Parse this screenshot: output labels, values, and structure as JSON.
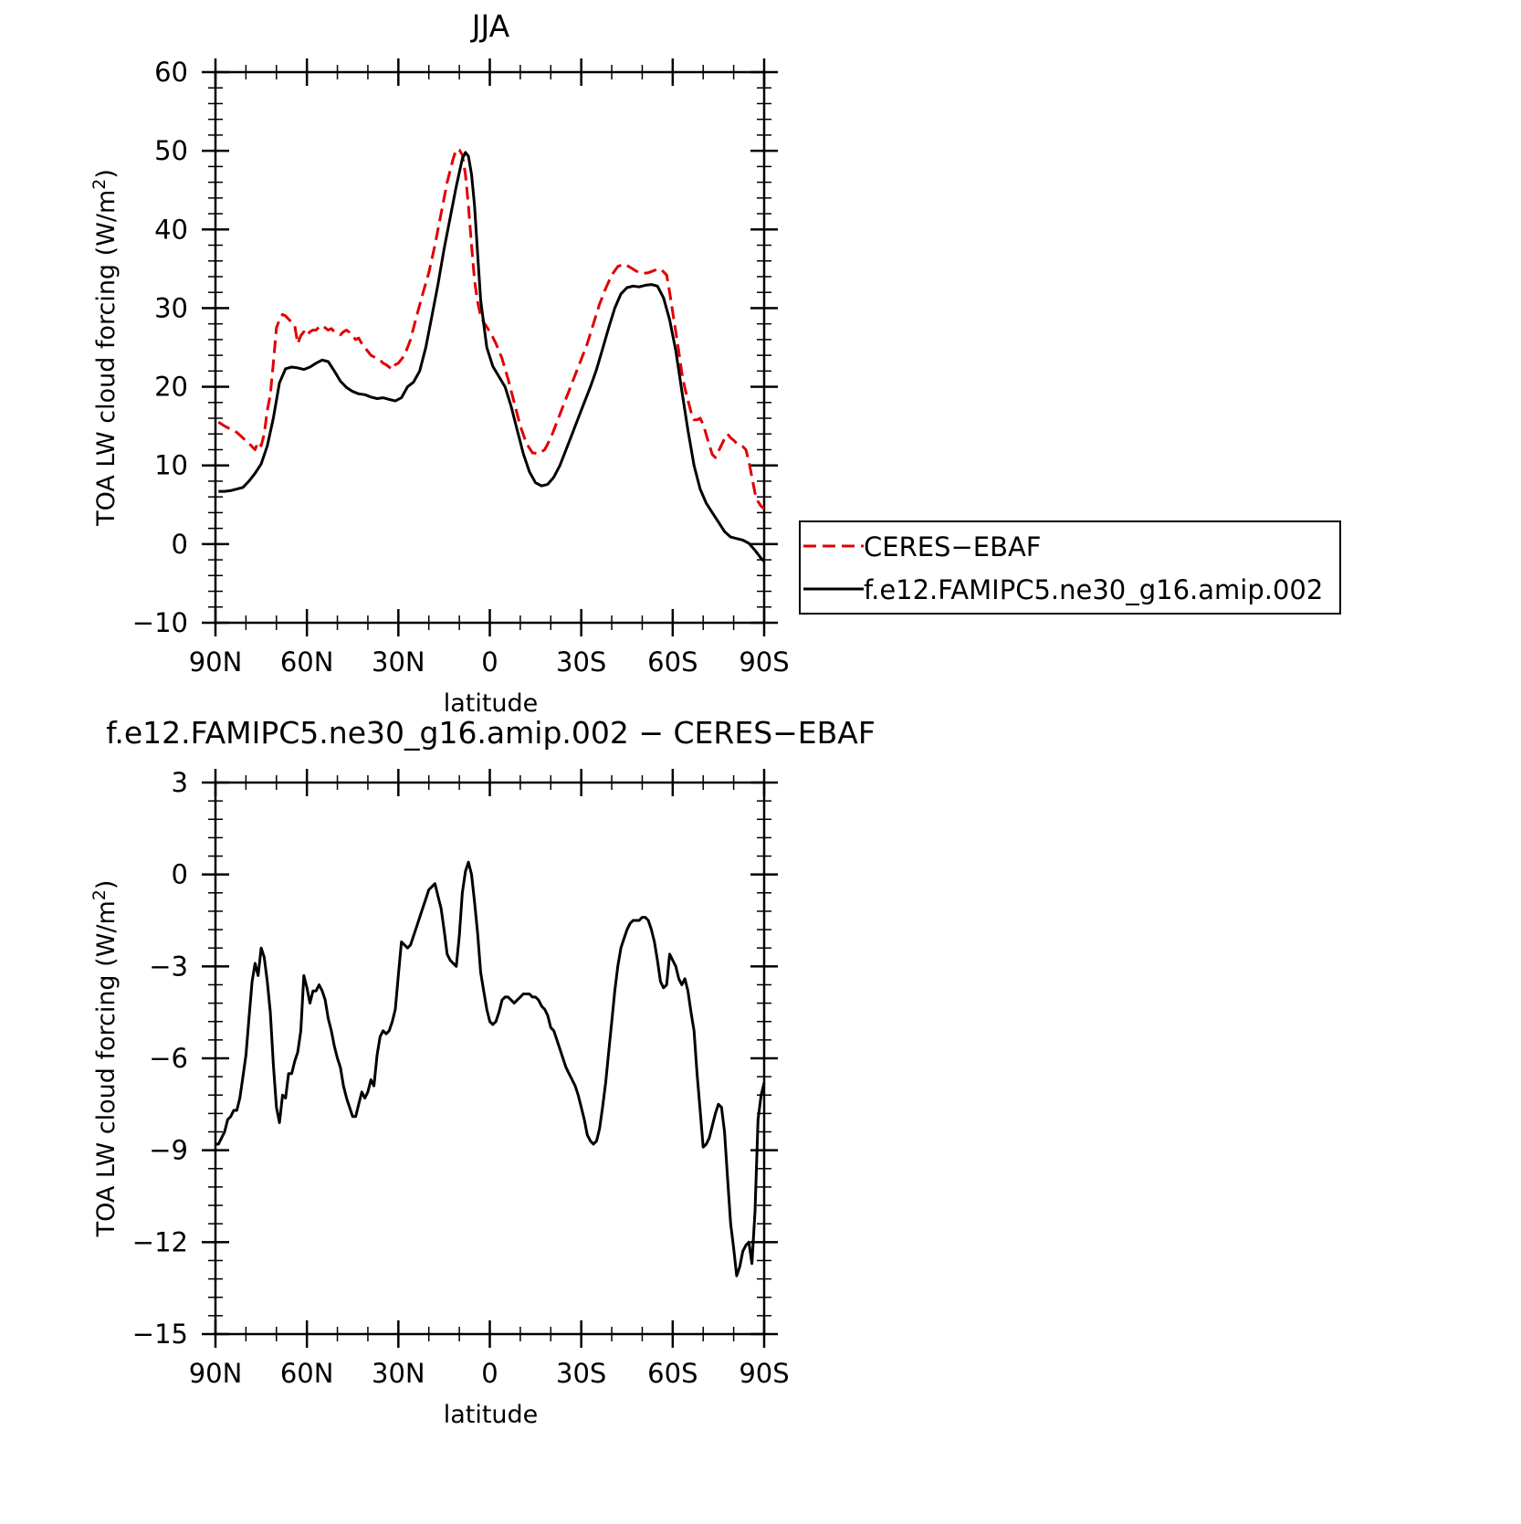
{
  "chart_data": [
    {
      "type": "line",
      "title": "JJA",
      "xlabel": "latitude",
      "ylabel": "TOA LW cloud forcing (W/m",
      "ylabel_sup": "2",
      "ylabel_close": ")",
      "xlim": [
        90,
        -90
      ],
      "ylim": [
        -10,
        60
      ],
      "xticks": [
        90,
        60,
        30,
        0,
        -30,
        -60,
        -90
      ],
      "xtick_labels": [
        "90N",
        "60N",
        "30N",
        "0",
        "30S",
        "60S",
        "90S"
      ],
      "yticks": [
        -10,
        0,
        10,
        20,
        30,
        40,
        50,
        60
      ],
      "ytick_labels": [
        "−10",
        "0",
        "10",
        "20",
        "30",
        "40",
        "50",
        "60"
      ],
      "legend_position": "right",
      "series": [
        {
          "name": "CERES−EBAF",
          "color": "#e00000",
          "dash": "dashed",
          "x": [
            89,
            87,
            85,
            83,
            81,
            79,
            77,
            76,
            75,
            74,
            73,
            72,
            71,
            70,
            69,
            68,
            67,
            66,
            65,
            64,
            63,
            62,
            61,
            60,
            59,
            58,
            57,
            56,
            55,
            54,
            53,
            52,
            51,
            50,
            49,
            48,
            47,
            46,
            45,
            44,
            43,
            42,
            41,
            40,
            39,
            38,
            37,
            36,
            35,
            34,
            33,
            32,
            31,
            30,
            29,
            28,
            27,
            26,
            25,
            24,
            22,
            20,
            18,
            16,
            14,
            12,
            11,
            10,
            9,
            8,
            7,
            6,
            5,
            4,
            3,
            2,
            1,
            0,
            -1,
            -2,
            -4,
            -6,
            -8,
            -10,
            -12,
            -14,
            -16,
            -18,
            -20,
            -22,
            -24,
            -26,
            -28,
            -30,
            -32,
            -34,
            -36,
            -38,
            -40,
            -42,
            -44,
            -46,
            -48,
            -50,
            -52,
            -54,
            -56,
            -58,
            -59,
            -60,
            -61,
            -62,
            -63,
            -64,
            -65,
            -66,
            -67,
            -68,
            -69,
            -70,
            -71,
            -72,
            -73,
            -74,
            -75,
            -76,
            -77,
            -78,
            -79,
            -80,
            -81,
            -82,
            -83,
            -84,
            -85,
            -86,
            -87,
            -88,
            -89,
            -90
          ],
          "y": [
            15.5,
            15.0,
            14.6,
            14.2,
            13.5,
            12.8,
            12.0,
            13.0,
            12.5,
            14.0,
            17.0,
            19.0,
            23.0,
            27.5,
            28.5,
            29.2,
            29.0,
            28.6,
            28.2,
            27.8,
            25.5,
            26.5,
            27.0,
            26.5,
            27.0,
            27.2,
            27.2,
            27.6,
            27.8,
            27.5,
            27.2,
            27.4,
            27.0,
            26.8,
            26.6,
            27.0,
            27.2,
            26.9,
            26.4,
            26.0,
            26.2,
            25.5,
            25.0,
            24.5,
            24.0,
            23.8,
            23.6,
            23.4,
            23.0,
            22.8,
            22.5,
            22.2,
            22.8,
            23.0,
            23.5,
            24.0,
            25.0,
            26.0,
            27.5,
            29.0,
            31.8,
            34.5,
            38.0,
            42.0,
            46.0,
            49.0,
            50.2,
            50.1,
            49.5,
            47.0,
            43.0,
            38.0,
            33.5,
            30.8,
            29.0,
            28.2,
            27.6,
            27.0,
            26.3,
            25.5,
            23.6,
            21.0,
            18.0,
            15.0,
            12.8,
            11.6,
            11.5,
            12.0,
            13.5,
            15.5,
            17.5,
            19.5,
            21.5,
            23.5,
            25.5,
            28.0,
            30.5,
            32.5,
            34.2,
            35.3,
            35.6,
            35.2,
            34.7,
            34.4,
            34.5,
            34.8,
            35.0,
            34.2,
            32.0,
            29.5,
            27.0,
            24.5,
            21.8,
            19.8,
            18.3,
            16.8,
            15.8,
            15.8,
            16.0,
            15.2,
            13.9,
            12.6,
            11.4,
            11.0,
            11.8,
            12.6,
            13.4,
            14.0,
            13.5,
            13.2,
            12.8,
            12.6,
            12.4,
            12.0,
            10.5,
            8.5,
            6.5,
            5.4,
            4.8,
            4.5
          ]
        },
        {
          "name": "f.e12.FAMIPC5.ne30_g16.amip.002",
          "color": "#000000",
          "dash": "solid",
          "x": [
            89,
            87,
            85,
            83,
            81,
            79,
            77,
            75,
            73,
            71,
            69,
            67,
            65,
            63,
            61,
            59,
            57,
            55,
            53,
            51,
            49,
            47,
            45,
            43,
            41,
            39,
            37,
            35,
            33,
            31,
            29,
            27,
            25,
            23,
            21,
            19,
            17,
            15,
            13,
            11,
            9,
            8,
            7,
            6,
            5,
            4,
            3,
            1,
            -1,
            -3,
            -5,
            -7,
            -9,
            -11,
            -13,
            -15,
            -17,
            -19,
            -21,
            -23,
            -25,
            -27,
            -29,
            -31,
            -33,
            -35,
            -37,
            -39,
            -41,
            -43,
            -45,
            -47,
            -49,
            -51,
            -53,
            -55,
            -57,
            -59,
            -61,
            -63,
            -65,
            -67,
            -69,
            -71,
            -73,
            -75,
            -77,
            -79,
            -81,
            -83,
            -85,
            -87,
            -89,
            -90
          ],
          "y": [
            6.7,
            6.7,
            6.8,
            7.0,
            7.2,
            8.0,
            9.0,
            10.2,
            12.5,
            16.0,
            20.5,
            22.3,
            22.5,
            22.4,
            22.2,
            22.5,
            23.0,
            23.4,
            23.2,
            22.0,
            20.7,
            19.9,
            19.4,
            19.1,
            19.0,
            18.7,
            18.5,
            18.6,
            18.4,
            18.2,
            18.6,
            20.0,
            20.6,
            22.0,
            25.0,
            29.0,
            33.0,
            37.5,
            41.5,
            45.5,
            49.0,
            49.8,
            49.3,
            47.0,
            43.0,
            37.0,
            31.0,
            25.0,
            22.6,
            21.3,
            20.0,
            17.5,
            14.5,
            11.5,
            9.2,
            7.8,
            7.4,
            7.6,
            8.5,
            10.0,
            12.0,
            14.0,
            16.0,
            18.0,
            20.0,
            22.2,
            24.8,
            27.5,
            30.0,
            31.8,
            32.6,
            32.8,
            32.7,
            32.9,
            33.0,
            32.8,
            31.3,
            28.5,
            24.6,
            19.5,
            14.5,
            10.0,
            7.0,
            5.2,
            4.0,
            2.8,
            1.6,
            0.9,
            0.7,
            0.5,
            0.1,
            -0.8,
            -1.8,
            -2.2
          ]
        }
      ]
    },
    {
      "type": "line",
      "title": "f.e12.FAMIPC5.ne30_g16.amip.002 − CERES−EBAF",
      "xlabel": "latitude",
      "ylabel": "TOA LW cloud forcing (W/m",
      "ylabel_sup": "2",
      "ylabel_close": ")",
      "xlim": [
        90,
        -90
      ],
      "ylim": [
        -15,
        3
      ],
      "xticks": [
        90,
        60,
        30,
        0,
        -30,
        -60,
        -90
      ],
      "xtick_labels": [
        "90N",
        "60N",
        "30N",
        "0",
        "30S",
        "60S",
        "90S"
      ],
      "yticks": [
        -15,
        -12,
        -9,
        -6,
        -3,
        0,
        3
      ],
      "ytick_labels": [
        "−15",
        "−12",
        "−9",
        "−6",
        "−3",
        "0",
        "3"
      ],
      "series": [
        {
          "name": "",
          "color": "#000000",
          "dash": "solid",
          "x": [
            90,
            89,
            88,
            87,
            86,
            85,
            84,
            83,
            82,
            81,
            80,
            79,
            78,
            77,
            76,
            75,
            74,
            73,
            72,
            71,
            70,
            69,
            68,
            67,
            66,
            65,
            64,
            63,
            62,
            61,
            60,
            59,
            58,
            57,
            56,
            55,
            54,
            53,
            52,
            51,
            50,
            49,
            48,
            47,
            46,
            45,
            44,
            43,
            42,
            41,
            40,
            39,
            38,
            37,
            36,
            35,
            34,
            33,
            32,
            31,
            30,
            29,
            28,
            27,
            26,
            25,
            24,
            23,
            22,
            21,
            20,
            19,
            18,
            17,
            16,
            15,
            14,
            13,
            12,
            11,
            10,
            9,
            8,
            7,
            6,
            5,
            4,
            3,
            2,
            1,
            0,
            -1,
            -2,
            -3,
            -4,
            -5,
            -6,
            -7,
            -8,
            -9,
            -10,
            -11,
            -12,
            -13,
            -14,
            -15,
            -16,
            -17,
            -18,
            -19,
            -20,
            -21,
            -22,
            -23,
            -24,
            -25,
            -26,
            -27,
            -28,
            -29,
            -30,
            -31,
            -32,
            -33,
            -34,
            -35,
            -36,
            -37,
            -38,
            -39,
            -40,
            -41,
            -42,
            -43,
            -44,
            -45,
            -46,
            -47,
            -48,
            -49,
            -50,
            -51,
            -52,
            -53,
            -54,
            -55,
            -56,
            -57,
            -58,
            -59,
            -60,
            -61,
            -62,
            -63,
            -64,
            -65,
            -66,
            -67,
            -68,
            -69,
            -70,
            -71,
            -72,
            -73,
            -74,
            -75,
            -76,
            -77,
            -78,
            -79,
            -80,
            -81,
            -82,
            -83,
            -84,
            -85,
            -86,
            -87,
            -88,
            -89,
            -90
          ],
          "y": [
            -8.8,
            -8.8,
            -8.6,
            -8.4,
            -8.0,
            -7.9,
            -7.7,
            -7.7,
            -7.3,
            -6.6,
            -5.9,
            -4.7,
            -3.5,
            -2.9,
            -3.3,
            -2.4,
            -2.7,
            -3.5,
            -4.5,
            -6.2,
            -7.6,
            -8.1,
            -7.2,
            -7.3,
            -6.5,
            -6.5,
            -6.1,
            -5.8,
            -5.1,
            -3.3,
            -3.7,
            -4.2,
            -3.8,
            -3.8,
            -3.6,
            -3.8,
            -4.1,
            -4.7,
            -5.1,
            -5.6,
            -6.0,
            -6.3,
            -6.9,
            -7.3,
            -7.6,
            -7.9,
            -7.9,
            -7.5,
            -7.1,
            -7.3,
            -7.1,
            -6.7,
            -6.9,
            -5.9,
            -5.3,
            -5.1,
            -5.2,
            -5.1,
            -4.8,
            -4.4,
            -3.3,
            -2.2,
            -2.3,
            -2.4,
            -2.3,
            -2.0,
            -1.7,
            -1.4,
            -1.1,
            -0.8,
            -0.5,
            -0.4,
            -0.3,
            -0.7,
            -1.1,
            -1.8,
            -2.6,
            -2.8,
            -2.9,
            -3.0,
            -2.0,
            -0.6,
            0.1,
            0.4,
            0.0,
            -0.9,
            -1.9,
            -3.2,
            -3.8,
            -4.4,
            -4.8,
            -4.9,
            -4.8,
            -4.5,
            -4.1,
            -4.0,
            -4.0,
            -4.1,
            -4.2,
            -4.1,
            -4.0,
            -3.9,
            -3.9,
            -3.9,
            -4.0,
            -4.0,
            -4.1,
            -4.3,
            -4.4,
            -4.6,
            -5.0,
            -5.1,
            -5.4,
            -5.7,
            -6.0,
            -6.3,
            -6.5,
            -6.7,
            -6.9,
            -7.2,
            -7.6,
            -8.0,
            -8.5,
            -8.7,
            -8.8,
            -8.7,
            -8.3,
            -7.6,
            -6.8,
            -5.8,
            -4.8,
            -3.8,
            -3.0,
            -2.4,
            -2.1,
            -1.8,
            -1.6,
            -1.5,
            -1.5,
            -1.5,
            -1.4,
            -1.4,
            -1.5,
            -1.8,
            -2.2,
            -2.8,
            -3.5,
            -3.7,
            -3.6,
            -2.6,
            -2.8,
            -3.0,
            -3.4,
            -3.6,
            -3.4,
            -3.8,
            -4.5,
            -5.1,
            -6.5,
            -7.7,
            -8.9,
            -8.8,
            -8.6,
            -8.2,
            -7.8,
            -7.5,
            -7.6,
            -8.4,
            -9.9,
            -11.4,
            -12.2,
            -13.1,
            -12.8,
            -12.3,
            -12.1,
            -12.0,
            -12.7,
            -11.0,
            -8.0,
            -7.2,
            -6.8
          ]
        }
      ]
    }
  ]
}
